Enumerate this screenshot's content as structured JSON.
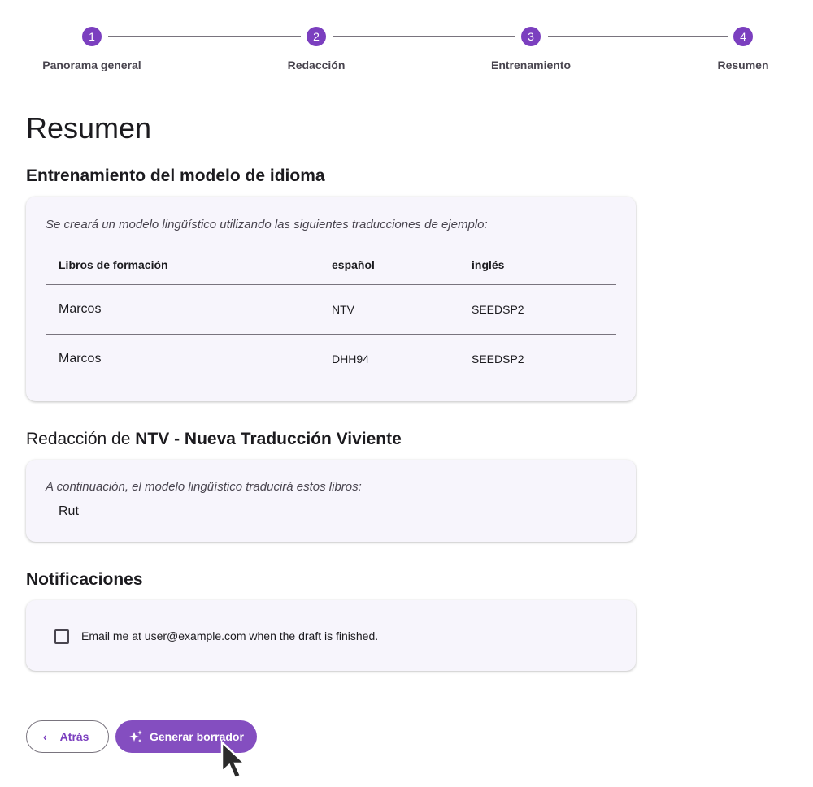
{
  "stepper": {
    "steps": [
      {
        "num": "1",
        "label": "Panorama general"
      },
      {
        "num": "2",
        "label": "Redacción"
      },
      {
        "num": "3",
        "label": "Entrenamiento"
      },
      {
        "num": "4",
        "label": "Resumen"
      }
    ]
  },
  "title": "Resumen",
  "training": {
    "heading": "Entrenamiento del modelo de idioma",
    "intro": "Se creará un modelo lingüístico utilizando las siguientes traducciones de ejemplo:",
    "columns": [
      "Libros de formación",
      "español",
      "inglés"
    ],
    "rows": [
      [
        "Marcos",
        "NTV",
        "SEEDSP2"
      ],
      [
        "Marcos",
        "DHH94",
        "SEEDSP2"
      ]
    ]
  },
  "drafting": {
    "heading_prefix": "Redacción de",
    "heading_project": "NTV - Nueva Traducción Viviente",
    "intro": "A continuación, el modelo lingüístico traducirá estos libros:",
    "books": "Rut"
  },
  "notifications": {
    "heading": "Notificaciones",
    "checkbox_label": "Email me at user@example.com when the draft is finished.",
    "checked": false
  },
  "buttons": {
    "back": "Atrás",
    "generate": "Generar borrador"
  },
  "colors": {
    "accent": "#7b3fbf",
    "card": "#f7f5fc"
  }
}
